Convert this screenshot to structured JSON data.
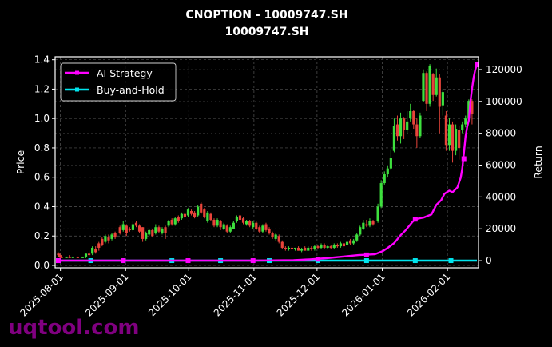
{
  "chart_data": {
    "type": "candlestick+line",
    "title": "CNOPTION - 10009747.SH",
    "subtitle": "10009747.SH",
    "ylabel_left": "Price",
    "ylabel_right": "Return",
    "xlabel": "",
    "ylim_left": [
      0.0,
      1.42
    ],
    "ylim_right": [
      -4500,
      128000
    ],
    "yticks_left": [
      "0.0",
      "0.2",
      "0.4",
      "0.6",
      "0.8",
      "1.0",
      "1.2",
      "1.4"
    ],
    "yticks_right": [
      "0",
      "20000",
      "40000",
      "60000",
      "80000",
      "100000",
      "120000"
    ],
    "xticks": [
      "2025-08-01",
      "2025-09-01",
      "2025-10-01",
      "2025-11-01",
      "2025-12-01",
      "2026-01-01",
      "2026-02-01"
    ],
    "grid": true,
    "legend_position": "upper left",
    "legend": [
      {
        "name": "AI Strategy",
        "color": "#ff00ff"
      },
      {
        "name": "Buy-and-Hold",
        "color": "#00e5ee"
      }
    ],
    "colors": {
      "up": "#3de03d",
      "down": "#e8443a",
      "background": "#000000",
      "grid": "#555555",
      "axis": "#ffffff"
    },
    "candles": [
      [
        0,
        0.08,
        0.07,
        0.09,
        0.06
      ],
      [
        1,
        0.07,
        0.06,
        0.08,
        0.05
      ],
      [
        2,
        0.06,
        0.05,
        0.07,
        0.05
      ],
      [
        5,
        0.05,
        0.06,
        0.06,
        0.05
      ],
      [
        7,
        0.06,
        0.05,
        0.07,
        0.05
      ],
      [
        9,
        0.05,
        0.06,
        0.06,
        0.05
      ],
      [
        12,
        0.06,
        0.05,
        0.06,
        0.05
      ],
      [
        15,
        0.05,
        0.06,
        0.06,
        0.05
      ],
      [
        17,
        0.06,
        0.08,
        0.08,
        0.05
      ],
      [
        19,
        0.08,
        0.07,
        0.1,
        0.06
      ],
      [
        21,
        0.08,
        0.12,
        0.13,
        0.07
      ],
      [
        23,
        0.11,
        0.09,
        0.13,
        0.08
      ],
      [
        25,
        0.15,
        0.12,
        0.16,
        0.1
      ],
      [
        27,
        0.18,
        0.14,
        0.19,
        0.13
      ],
      [
        29,
        0.16,
        0.2,
        0.21,
        0.15
      ],
      [
        31,
        0.19,
        0.17,
        0.21,
        0.15
      ],
      [
        33,
        0.18,
        0.21,
        0.22,
        0.17
      ],
      [
        35,
        0.22,
        0.19,
        0.23,
        0.18
      ],
      [
        38,
        0.26,
        0.22,
        0.27,
        0.21
      ],
      [
        40,
        0.24,
        0.28,
        0.3,
        0.23
      ],
      [
        42,
        0.27,
        0.22,
        0.28,
        0.2
      ],
      [
        44,
        0.25,
        0.24,
        0.26,
        0.23
      ],
      [
        46,
        0.24,
        0.28,
        0.3,
        0.23
      ],
      [
        48,
        0.29,
        0.27,
        0.3,
        0.26
      ],
      [
        50,
        0.27,
        0.23,
        0.28,
        0.22
      ],
      [
        52,
        0.26,
        0.18,
        0.26,
        0.16
      ],
      [
        54,
        0.18,
        0.22,
        0.23,
        0.17
      ],
      [
        56,
        0.21,
        0.24,
        0.25,
        0.2
      ],
      [
        58,
        0.24,
        0.2,
        0.25,
        0.19
      ],
      [
        60,
        0.22,
        0.26,
        0.28,
        0.21
      ],
      [
        62,
        0.26,
        0.23,
        0.27,
        0.22
      ],
      [
        64,
        0.22,
        0.25,
        0.26,
        0.21
      ],
      [
        66,
        0.26,
        0.22,
        0.27,
        0.18
      ],
      [
        68,
        0.27,
        0.3,
        0.31,
        0.26
      ],
      [
        70,
        0.31,
        0.28,
        0.32,
        0.27
      ],
      [
        72,
        0.28,
        0.32,
        0.33,
        0.27
      ],
      [
        74,
        0.33,
        0.3,
        0.34,
        0.29
      ],
      [
        76,
        0.32,
        0.35,
        0.36,
        0.31
      ],
      [
        78,
        0.35,
        0.33,
        0.36,
        0.32
      ],
      [
        80,
        0.34,
        0.38,
        0.39,
        0.33
      ],
      [
        82,
        0.37,
        0.35,
        0.38,
        0.34
      ],
      [
        84,
        0.36,
        0.33,
        0.37,
        0.32
      ],
      [
        86,
        0.34,
        0.4,
        0.41,
        0.33
      ],
      [
        88,
        0.42,
        0.36,
        0.43,
        0.35
      ],
      [
        90,
        0.38,
        0.33,
        0.39,
        0.32
      ],
      [
        92,
        0.3,
        0.36,
        0.37,
        0.29
      ],
      [
        94,
        0.35,
        0.31,
        0.36,
        0.3
      ],
      [
        96,
        0.31,
        0.27,
        0.32,
        0.26
      ],
      [
        98,
        0.27,
        0.31,
        0.32,
        0.26
      ],
      [
        100,
        0.3,
        0.26,
        0.31,
        0.24
      ],
      [
        102,
        0.25,
        0.28,
        0.29,
        0.24
      ],
      [
        104,
        0.27,
        0.23,
        0.28,
        0.22
      ],
      [
        106,
        0.23,
        0.26,
        0.27,
        0.22
      ],
      [
        108,
        0.25,
        0.29,
        0.3,
        0.25
      ],
      [
        110,
        0.3,
        0.33,
        0.34,
        0.29
      ],
      [
        112,
        0.34,
        0.31,
        0.35,
        0.3
      ],
      [
        114,
        0.32,
        0.29,
        0.33,
        0.28
      ],
      [
        116,
        0.28,
        0.3,
        0.31,
        0.27
      ],
      [
        118,
        0.3,
        0.27,
        0.31,
        0.26
      ],
      [
        120,
        0.26,
        0.29,
        0.3,
        0.25
      ],
      [
        122,
        0.29,
        0.25,
        0.3,
        0.24
      ],
      [
        124,
        0.26,
        0.23,
        0.27,
        0.22
      ],
      [
        126,
        0.23,
        0.27,
        0.28,
        0.22
      ],
      [
        128,
        0.28,
        0.24,
        0.29,
        0.23
      ],
      [
        130,
        0.25,
        0.22,
        0.26,
        0.21
      ],
      [
        132,
        0.22,
        0.19,
        0.23,
        0.18
      ],
      [
        134,
        0.18,
        0.21,
        0.22,
        0.17
      ],
      [
        136,
        0.2,
        0.16,
        0.21,
        0.15
      ],
      [
        138,
        0.16,
        0.12,
        0.17,
        0.11
      ],
      [
        140,
        0.12,
        0.11,
        0.13,
        0.1
      ],
      [
        142,
        0.11,
        0.12,
        0.13,
        0.1
      ],
      [
        144,
        0.12,
        0.11,
        0.13,
        0.1
      ],
      [
        146,
        0.11,
        0.12,
        0.12,
        0.1
      ],
      [
        148,
        0.12,
        0.1,
        0.13,
        0.1
      ],
      [
        150,
        0.1,
        0.11,
        0.12,
        0.09
      ],
      [
        152,
        0.12,
        0.1,
        0.13,
        0.1
      ],
      [
        154,
        0.1,
        0.12,
        0.13,
        0.1
      ],
      [
        156,
        0.12,
        0.11,
        0.13,
        0.1
      ],
      [
        158,
        0.11,
        0.13,
        0.14,
        0.1
      ],
      [
        160,
        0.13,
        0.12,
        0.14,
        0.11
      ],
      [
        162,
        0.12,
        0.14,
        0.15,
        0.11
      ],
      [
        164,
        0.14,
        0.12,
        0.15,
        0.11
      ],
      [
        166,
        0.12,
        0.13,
        0.14,
        0.11
      ],
      [
        168,
        0.13,
        0.12,
        0.14,
        0.11
      ],
      [
        170,
        0.12,
        0.14,
        0.15,
        0.11
      ],
      [
        172,
        0.14,
        0.13,
        0.15,
        0.12
      ],
      [
        174,
        0.13,
        0.15,
        0.16,
        0.12
      ],
      [
        176,
        0.15,
        0.13,
        0.16,
        0.12
      ],
      [
        178,
        0.14,
        0.16,
        0.17,
        0.13
      ],
      [
        180,
        0.17,
        0.15,
        0.18,
        0.14
      ],
      [
        182,
        0.15,
        0.17,
        0.18,
        0.14
      ],
      [
        184,
        0.17,
        0.21,
        0.22,
        0.16
      ],
      [
        186,
        0.21,
        0.26,
        0.27,
        0.2
      ],
      [
        188,
        0.25,
        0.29,
        0.31,
        0.24
      ],
      [
        190,
        0.28,
        0.27,
        0.31,
        0.26
      ],
      [
        192,
        0.27,
        0.3,
        0.32,
        0.26
      ],
      [
        194,
        0.3,
        0.28,
        0.31,
        0.27
      ],
      [
        197,
        0.3,
        0.4,
        0.42,
        0.29
      ],
      [
        199,
        0.4,
        0.56,
        0.58,
        0.39
      ],
      [
        201,
        0.56,
        0.62,
        0.64,
        0.55
      ],
      [
        203,
        0.62,
        0.66,
        0.68,
        0.6
      ],
      [
        205,
        0.66,
        0.73,
        0.79,
        0.65
      ],
      [
        207,
        0.78,
        0.95,
        1.0,
        0.77
      ],
      [
        209,
        0.96,
        0.88,
        1.02,
        0.85
      ],
      [
        211,
        0.88,
        1.0,
        1.04,
        0.83
      ],
      [
        213,
        1.0,
        0.92,
        1.01,
        0.86
      ],
      [
        215,
        0.92,
        0.98,
        1.05,
        0.9
      ],
      [
        217,
        1.0,
        1.05,
        1.1,
        0.98
      ],
      [
        219,
        1.05,
        0.96,
        1.06,
        0.93
      ],
      [
        221,
        0.96,
        0.88,
        1.0,
        0.8
      ],
      [
        223,
        0.88,
        1.02,
        1.04,
        0.87
      ],
      [
        225,
        1.12,
        1.31,
        1.33,
        1.11
      ],
      [
        227,
        1.31,
        1.1,
        1.32,
        1.05
      ],
      [
        229,
        1.1,
        1.36,
        1.37,
        1.08
      ],
      [
        231,
        1.3,
        1.16,
        1.31,
        1.12
      ],
      [
        233,
        1.16,
        1.28,
        1.34,
        1.15
      ],
      [
        235,
        1.28,
        1.08,
        1.3,
        0.9
      ],
      [
        237,
        1.09,
        1.18,
        1.2,
        1.02
      ],
      [
        239,
        1.02,
        0.82,
        1.05,
        0.78
      ],
      [
        241,
        0.82,
        0.96,
        1.0,
        0.78
      ],
      [
        243,
        0.96,
        0.78,
        0.98,
        0.7
      ],
      [
        245,
        0.78,
        0.93,
        0.96,
        0.75
      ],
      [
        247,
        0.92,
        0.8,
        0.95,
        0.72
      ],
      [
        249,
        0.92,
        0.96,
        0.98,
        0.9
      ],
      [
        251,
        0.96,
        1.0,
        1.02,
        0.94
      ],
      [
        253,
        1.0,
        1.12,
        1.13,
        0.98
      ],
      [
        255,
        1.12,
        1.03,
        1.13,
        0.96
      ]
    ],
    "ai_strategy": {
      "points": [
        [
          0,
          0
        ],
        [
          40,
          0
        ],
        [
          80,
          0
        ],
        [
          120,
          0
        ],
        [
          145,
          300
        ],
        [
          155,
          800
        ],
        [
          165,
          1500
        ],
        [
          175,
          2500
        ],
        [
          185,
          3500
        ],
        [
          195,
          4000
        ],
        [
          200,
          6000
        ],
        [
          203,
          8000
        ],
        [
          207,
          11000
        ],
        [
          211,
          16000
        ],
        [
          214,
          19000
        ],
        [
          218,
          24000
        ],
        [
          220,
          26000
        ],
        [
          225,
          27000
        ],
        [
          230,
          29000
        ],
        [
          233,
          35000
        ],
        [
          236,
          38000
        ],
        [
          238,
          42000
        ],
        [
          241,
          44000
        ],
        [
          243,
          43000
        ],
        [
          245,
          45000
        ],
        [
          246,
          46000
        ],
        [
          248,
          52000
        ],
        [
          249,
          58000
        ],
        [
          250,
          68000
        ],
        [
          251,
          78000
        ],
        [
          252,
          84000
        ],
        [
          253,
          88000
        ],
        [
          254,
          100000
        ],
        [
          255,
          108000
        ],
        [
          256,
          115000
        ],
        [
          257,
          120000
        ],
        [
          258,
          123000
        ]
      ],
      "markers": [
        [
          0,
          0
        ],
        [
          40,
          0
        ],
        [
          80,
          0
        ],
        [
          120,
          0
        ],
        [
          160,
          900
        ],
        [
          190,
          3600
        ],
        [
          220,
          26000
        ],
        [
          250,
          64000
        ],
        [
          258,
          123000
        ]
      ]
    },
    "buy_and_hold": {
      "points": [
        [
          0,
          0
        ],
        [
          258,
          0
        ]
      ],
      "markers": [
        [
          0,
          0
        ],
        [
          20,
          0
        ],
        [
          40,
          0
        ],
        [
          70,
          0
        ],
        [
          100,
          0
        ],
        [
          130,
          0
        ],
        [
          160,
          0
        ],
        [
          190,
          0
        ],
        [
          220,
          0
        ],
        [
          242,
          0
        ]
      ]
    }
  },
  "watermark": "uqtool.com"
}
